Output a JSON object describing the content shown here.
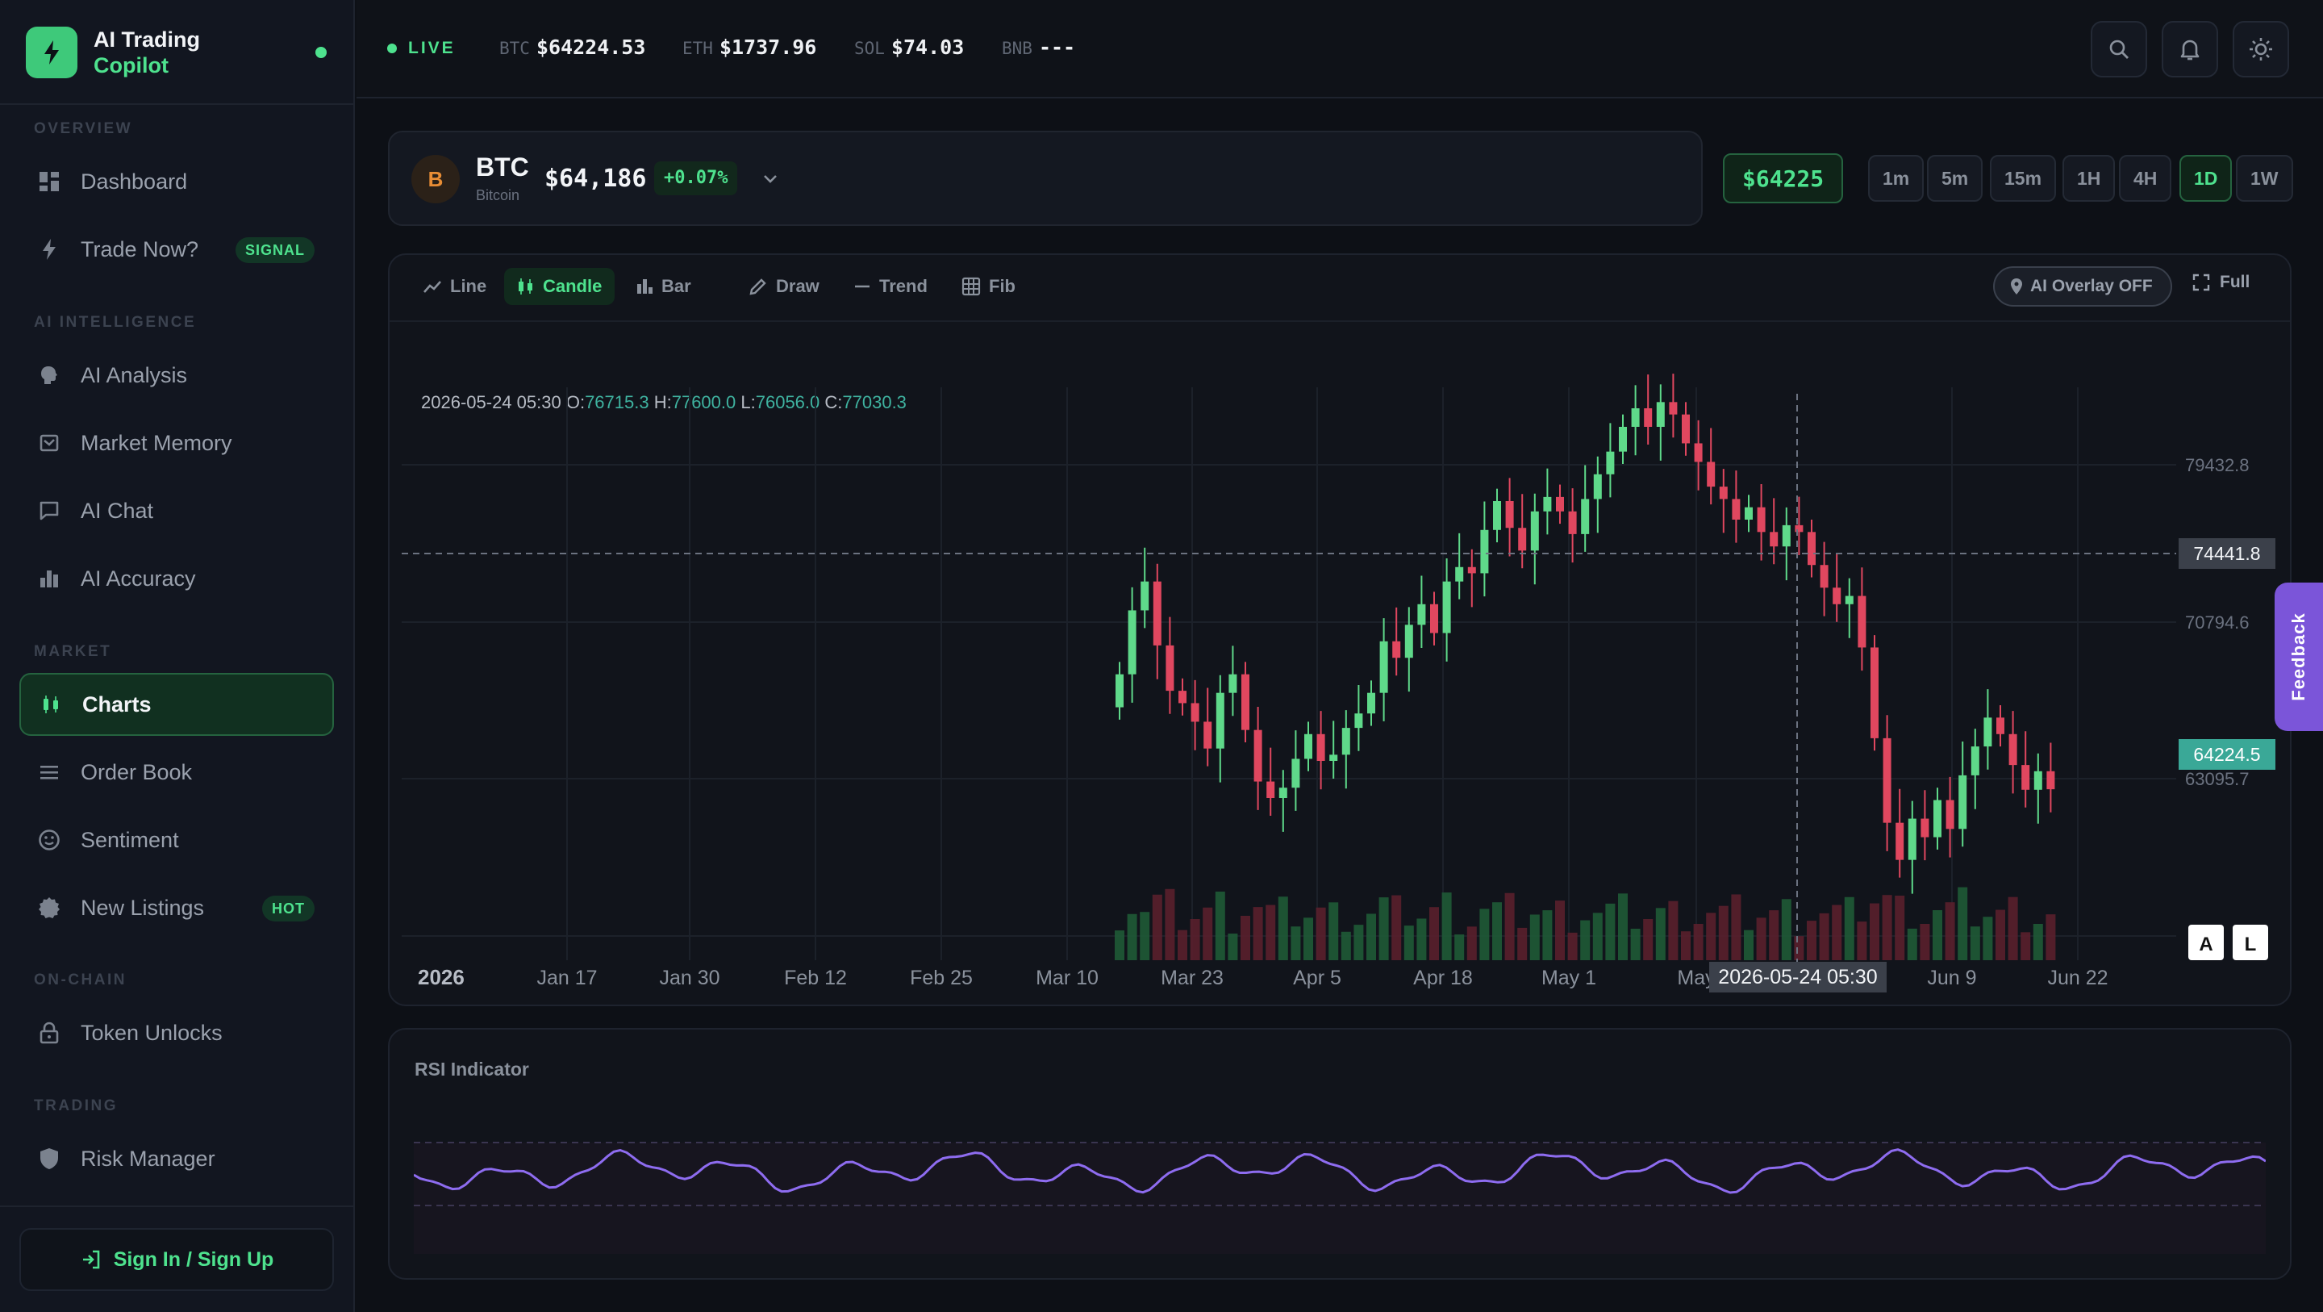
{
  "brand": {
    "line1": "AI Trading",
    "line2": "Copilot"
  },
  "sidebar": {
    "sections": [
      "OVERVIEW",
      "AI INTELLIGENCE",
      "MARKET",
      "ON-CHAIN",
      "TRADING"
    ],
    "items": [
      {
        "label": "Dashboard",
        "icon": "dashboard-icon"
      },
      {
        "label": "Trade Now?",
        "icon": "bolt-icon",
        "badge": "SIGNAL"
      },
      {
        "label": "AI Analysis",
        "icon": "brain-icon"
      },
      {
        "label": "Market Memory",
        "icon": "history-icon"
      },
      {
        "label": "AI Chat",
        "icon": "chat-icon"
      },
      {
        "label": "AI Accuracy",
        "icon": "bar-chart-icon"
      },
      {
        "label": "Charts",
        "icon": "candlestick-icon",
        "active": true
      },
      {
        "label": "Order Book",
        "icon": "list-icon"
      },
      {
        "label": "Sentiment",
        "icon": "smile-icon"
      },
      {
        "label": "New Listings",
        "icon": "badge-icon",
        "badge": "HOT"
      },
      {
        "label": "Token Unlocks",
        "icon": "lock-icon"
      },
      {
        "label": "Risk Manager",
        "icon": "shield-icon"
      }
    ],
    "signin": "Sign In / Sign Up"
  },
  "topbar": {
    "live": "LIVE",
    "tickers": [
      {
        "symbol": "BTC",
        "value": "$64224.53"
      },
      {
        "symbol": "ETH",
        "value": "$1737.96"
      },
      {
        "symbol": "SOL",
        "value": "$74.03"
      },
      {
        "symbol": "BNB",
        "value": "---"
      }
    ]
  },
  "asset": {
    "coin_letter": "B",
    "symbol": "BTC",
    "name": "Bitcoin",
    "price": "$64,186",
    "change": "+0.07%",
    "live_price": "$64225",
    "timeframes": [
      "1m",
      "5m",
      "15m",
      "1H",
      "4H",
      "1D",
      "1W"
    ],
    "active_timeframe": "1D"
  },
  "toolbar": {
    "chart_types": [
      "Line",
      "Candle",
      "Bar"
    ],
    "active_type": "Candle",
    "drawing": [
      "Draw",
      "Trend",
      "Fib"
    ],
    "ai_overlay": "AI Overlay OFF",
    "full": "Full"
  },
  "crosshair": {
    "date": "2026-05-24 05:30",
    "open_label": "O:",
    "open": "76715.3",
    "high_label": "H:",
    "high": "77600.0",
    "low_label": "L:",
    "low": "76056.0",
    "close_label": "C:",
    "close": "77030.3",
    "price_tag": "74441.8"
  },
  "chart_data": {
    "type": "candlestick",
    "symbol": "BTC",
    "timeframe": "1D",
    "x_tick_labels": [
      "2026",
      "Jan 17",
      "Jan 30",
      "Feb 12",
      "Feb 25",
      "Mar 10",
      "Mar 23",
      "Apr 5",
      "Apr 18",
      "May 1",
      "May",
      "Jun 9",
      "Jun 22"
    ],
    "y_tick_labels": [
      "79432.8",
      "70794.6",
      "63095.7"
    ],
    "last_price_tag": "64224.5",
    "y_range": [
      57500,
      84500
    ],
    "closes": [
      69800,
      72900,
      74300,
      71200,
      69000,
      68400,
      67500,
      66200,
      68900,
      69800,
      67100,
      64600,
      63800,
      64300,
      65700,
      66900,
      65600,
      65900,
      67200,
      67900,
      68900,
      71400,
      70600,
      72200,
      73200,
      71800,
      74300,
      75000,
      74700,
      76800,
      78200,
      76900,
      75800,
      77700,
      78400,
      77700,
      76600,
      78300,
      79500,
      80600,
      81800,
      82700,
      81800,
      83000,
      82400,
      81000,
      80100,
      78900,
      78300,
      77300,
      77900,
      76700,
      76000,
      77030,
      76700,
      75100,
      74000,
      73200,
      73600,
      71100,
      66700,
      62600,
      60800,
      62800,
      61900,
      63700,
      62300,
      64900,
      66300,
      67700,
      66900,
      65400,
      64200,
      65100,
      64225
    ],
    "volume_note": "relative volume bars shown beneath candles"
  },
  "rsi": {
    "title": "RSI Indicator"
  },
  "feedback": "Feedback",
  "corner_buttons": [
    "A",
    "L"
  ],
  "colors": {
    "accent": "#4ee28e",
    "up": "#5fd98a",
    "down": "#e0475f",
    "rsi": "#8e6cf0",
    "feedback": "#7b55d9"
  }
}
